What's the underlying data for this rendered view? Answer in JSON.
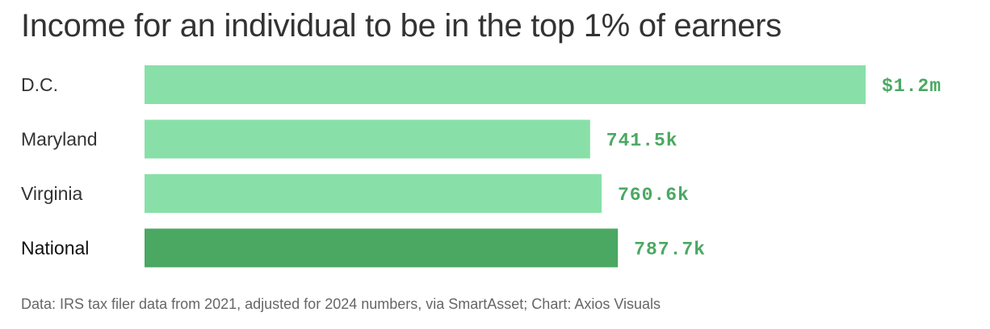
{
  "colors": {
    "bar": "#88e0a8",
    "bar_highlight": "#4aa862",
    "value_text": "#4aa862",
    "label_text": "#333333"
  },
  "chart_data": {
    "type": "bar",
    "orientation": "horizontal",
    "title": "Income for an individual to be in the top 1% of earners",
    "source": "Data: IRS tax filer data from 2021, adjusted for 2024 numbers, via SmartAsset; Chart: Axios Visuals",
    "categories": [
      "D.C.",
      "Maryland",
      "Virginia",
      "National"
    ],
    "values": [
      1200000,
      741500,
      760600,
      787700
    ],
    "value_labels": [
      "$1.2m",
      "741.5k",
      "760.6k",
      "787.7k"
    ],
    "highlight": [
      "National"
    ],
    "grid": false,
    "legend": "none"
  }
}
